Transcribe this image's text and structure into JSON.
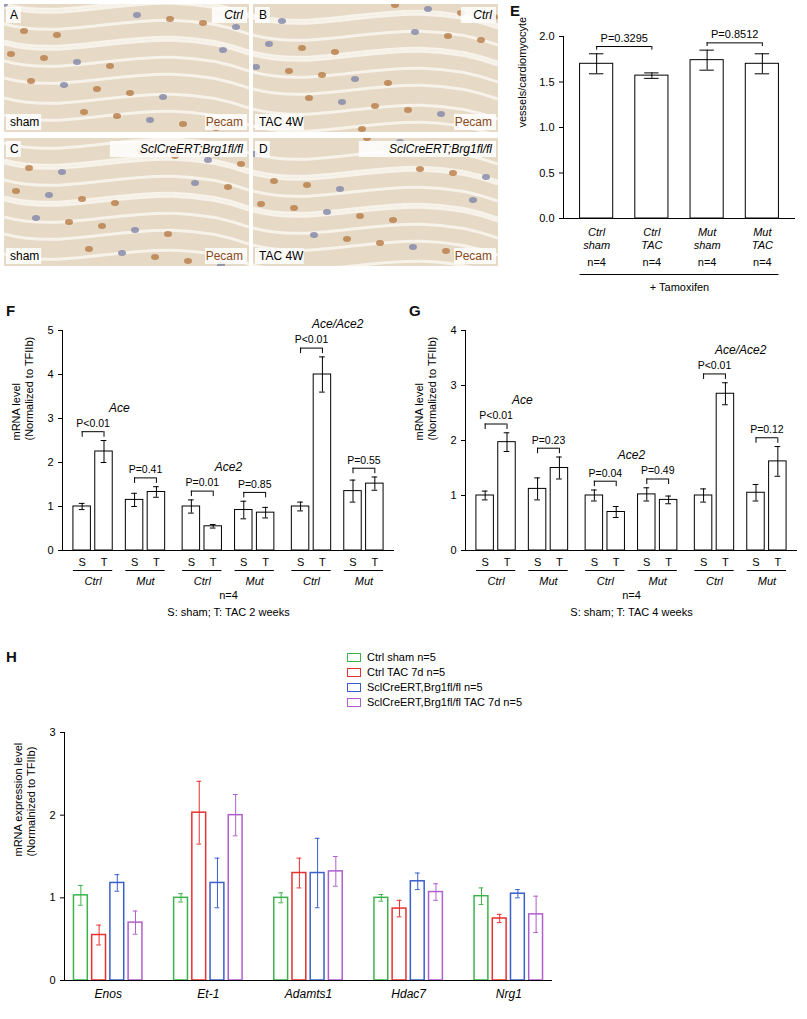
{
  "image_panels": [
    {
      "panel": "A",
      "genotype": "Ctrl",
      "condition": "sham",
      "stain": "Pecam"
    },
    {
      "panel": "B",
      "genotype": "Ctrl",
      "condition": "TAC 4W",
      "stain": "Pecam"
    },
    {
      "panel": "C",
      "genotype": "SclCreERT;Brg1fl/fl",
      "condition": "sham",
      "stain": "Pecam"
    },
    {
      "panel": "D",
      "genotype": "SclCreERT;Brg1fl/fl",
      "condition": "TAC 4W",
      "stain": "Pecam"
    }
  ],
  "chart_data": [
    {
      "panel": "E",
      "type": "bar",
      "categories": [
        "Ctrl\nsham",
        "Ctrl\nTAC",
        "Mut\nsham",
        "Mut\nTAC"
      ],
      "values": [
        1.7,
        1.57,
        1.74,
        1.7
      ],
      "errors": [
        0.11,
        0.03,
        0.11,
        0.11
      ],
      "n_labels": [
        "n=4",
        "n=4",
        "n=4",
        "n=4"
      ],
      "footer": "+ Tamoxifen",
      "comparisons": [
        {
          "between": [
            "Ctrl\nsham",
            "Ctrl\nTAC"
          ],
          "label": "P=0.3295"
        },
        {
          "between": [
            "Mut\nsham",
            "Mut\nTAC"
          ],
          "label": "P=0.8512"
        }
      ],
      "ylabel": "vessels/cardiomyocyte",
      "ylim": [
        0,
        2.0
      ],
      "yticks": [
        {
          "value": 0,
          "label": "0.0"
        },
        {
          "value": 0.5,
          "label": "0.5"
        },
        {
          "value": 1.0,
          "label": "1.0"
        },
        {
          "value": 1.5,
          "label": "1.5"
        },
        {
          "value": 2.0,
          "label": "2.0"
        }
      ],
      "color": "#ffffff"
    },
    {
      "panel": "F",
      "type": "bar",
      "groups": [
        "Ace",
        "Ace2",
        "Ace/Ace2"
      ],
      "subgroups": [
        "Ctrl",
        "Mut",
        "Ctrl",
        "Mut",
        "Ctrl",
        "Mut"
      ],
      "categories": [
        "S",
        "T",
        "S",
        "T",
        "S",
        "T",
        "S",
        "T",
        "S",
        "T",
        "S",
        "T"
      ],
      "values": [
        1.0,
        2.25,
        1.15,
        1.33,
        1.0,
        0.55,
        0.92,
        0.86,
        1.0,
        4.0,
        1.35,
        1.52
      ],
      "errors": [
        0.07,
        0.25,
        0.15,
        0.12,
        0.15,
        0.04,
        0.2,
        0.12,
        0.1,
        0.4,
        0.25,
        0.15
      ],
      "comparisons": [
        "P<0.01",
        "P=0.41",
        "P=0.01",
        "P=0.85",
        "P<0.01",
        "P=0.55"
      ],
      "n_label": "n=4",
      "footer": "S: sham; T: TAC 2 weeks",
      "ylabel": "mRNA level\n(Normalized to TFIIb)",
      "ylim": [
        0,
        5
      ],
      "yticks": [
        0,
        1,
        2,
        3,
        4,
        5
      ],
      "color": "#ffffff"
    },
    {
      "panel": "G",
      "type": "bar",
      "groups": [
        "Ace",
        "Ace2",
        "Ace/Ace2"
      ],
      "subgroups": [
        "Ctrl",
        "Mut",
        "Ctrl",
        "Mut",
        "Ctrl",
        "Mut"
      ],
      "categories": [
        "S",
        "T",
        "S",
        "T",
        "S",
        "T",
        "S",
        "T",
        "S",
        "T",
        "S",
        "T"
      ],
      "values": [
        1.0,
        1.97,
        1.12,
        1.5,
        1.0,
        0.7,
        1.02,
        0.92,
        1.0,
        2.85,
        1.05,
        1.62
      ],
      "errors": [
        0.08,
        0.17,
        0.2,
        0.2,
        0.1,
        0.1,
        0.12,
        0.07,
        0.12,
        0.2,
        0.15,
        0.27
      ],
      "comparisons": [
        "P<0.01",
        "P=0.23",
        "P=0.04",
        "P=0.49",
        "P<0.01",
        "P=0.12"
      ],
      "n_label": "n=4",
      "footer": "S: sham; T: TAC 4 weeks",
      "ylabel": "mRNA level\n(Normalized to TFIIb)",
      "ylim": [
        0,
        4
      ],
      "yticks": [
        0,
        1,
        2,
        3,
        4
      ],
      "color": "#ffffff"
    },
    {
      "panel": "H",
      "type": "bar",
      "categories": [
        "Enos",
        "Et-1",
        "Adamts1",
        "Hdac7",
        "Nrg1"
      ],
      "series": [
        {
          "name": "Ctrl sham  n=5",
          "color": "#3cb44b",
          "values": [
            1.03,
            1.0,
            1.0,
            1.0,
            1.02
          ],
          "errors": [
            0.12,
            0.05,
            0.06,
            0.04,
            0.1
          ]
        },
        {
          "name": "Ctrl TAC 7d  n=5",
          "color": "#e8312f",
          "values": [
            0.55,
            2.03,
            1.3,
            0.87,
            0.75
          ],
          "errors": [
            0.12,
            0.38,
            0.18,
            0.1,
            0.05
          ]
        },
        {
          "name": "SclCreERT,Brg1fl/fl  n=5",
          "color": "#3a5fcd",
          "values": [
            1.18,
            1.18,
            1.3,
            1.2,
            1.05
          ],
          "errors": [
            0.1,
            0.3,
            0.42,
            0.1,
            0.05
          ]
        },
        {
          "name": "SclCreERT,Brg1fl/fl TAC 7d  n=5",
          "color": "#b05fcf",
          "values": [
            0.7,
            2.0,
            1.32,
            1.07,
            0.8
          ],
          "errors": [
            0.14,
            0.25,
            0.18,
            0.1,
            0.22
          ]
        }
      ],
      "ylabel": "mRNA expression level\n(Normalnized to TFIIb)",
      "ylim": [
        0,
        3
      ],
      "yticks": [
        0,
        1,
        2,
        3
      ],
      "legend": "top-right"
    }
  ]
}
